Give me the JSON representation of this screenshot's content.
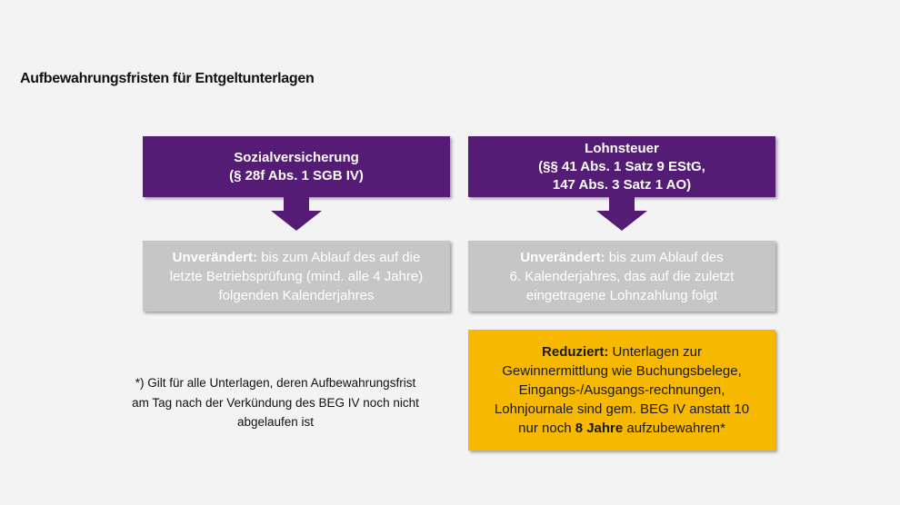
{
  "title": "Aufbewahrungsfristen für Entgeltunterlagen",
  "left": {
    "header_line1": "Sozialversicherung",
    "header_line2": "(§ 28f Abs. 1 SGB IV)",
    "status": "Unverändert:",
    "text_line1": " bis zum Ablauf des auf die",
    "text_line2": "letzte Betriebsprüfung (mind. alle 4 Jahre)",
    "text_line3": "folgenden Kalenderjahres"
  },
  "right": {
    "header_line1": "Lohnsteuer",
    "header_line2": "(§§ 41 Abs. 1 Satz 9 EStG,",
    "header_line3": "147 Abs. 3 Satz 1 AO)",
    "status": "Unverändert:",
    "text_line1": " bis zum Ablauf des",
    "text_line2": "6. Kalenderjahres, das auf die zuletzt",
    "text_line3": "eingetragene Lohnzahlung folgt"
  },
  "reduced": {
    "status": "Reduziert:",
    "line1": " Unterlagen zur",
    "line2": "Gewinnermittlung wie Buchungsbelege,",
    "line3": "Eingangs-/Ausgangs-rechnungen,",
    "line4": "Lohnjournale sind gem. BEG IV anstatt 10",
    "line5_pre": "nur noch ",
    "line5_bold": "8 Jahre",
    "line5_post": " aufzubewahren*"
  },
  "footnote": {
    "line1": "*) Gilt für alle Unterlagen, deren Aufbewahrungsfrist",
    "line2": "am Tag nach der Verkündung des BEG IV noch nicht",
    "line3": "abgelaufen ist"
  },
  "colors": {
    "purple": "#541c74",
    "grey": "#c6c6c6",
    "yellow": "#f7b800"
  }
}
